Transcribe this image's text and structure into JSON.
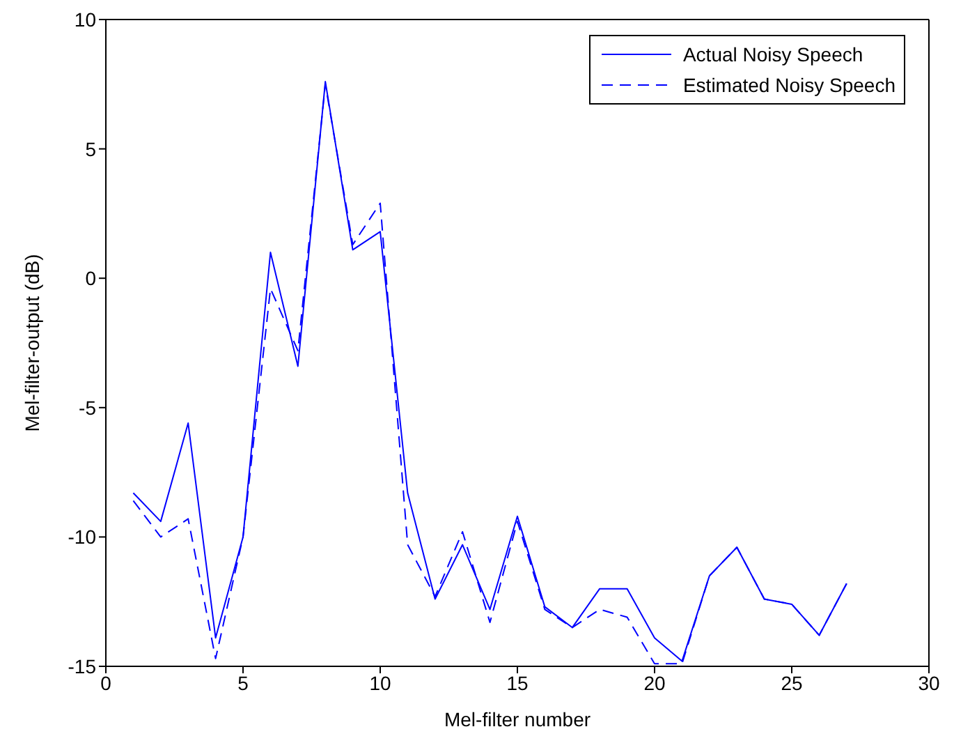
{
  "chart_data": {
    "type": "line",
    "xlabel": "Mel-filter number",
    "ylabel": "Mel-filter-output (dB)",
    "x": [
      1,
      2,
      3,
      4,
      5,
      6,
      7,
      8,
      9,
      10,
      11,
      12,
      13,
      14,
      15,
      16,
      17,
      18,
      19,
      20,
      21,
      22,
      23,
      24,
      25,
      26,
      27
    ],
    "xlim": [
      0,
      30
    ],
    "xticks": [
      0,
      5,
      10,
      15,
      20,
      25,
      30
    ],
    "ylim": [
      -15,
      10
    ],
    "yticks": [
      -15,
      -10,
      -5,
      0,
      5,
      10
    ],
    "grid": false,
    "legend": "top right",
    "marker": "none",
    "series": [
      {
        "name": "Actual Noisy Speech",
        "color": "#0000ff",
        "line_style": "solid",
        "values": [
          -8.3,
          -9.4,
          -5.6,
          -13.9,
          -10,
          1,
          -3.4,
          7.6,
          1.1,
          1.8,
          -8.3,
          -12.4,
          -10.3,
          -12.8,
          -9.2,
          -12.7,
          -13.5,
          -12,
          -12,
          -13.9,
          -14.8,
          -11.5,
          -10.4,
          -12.4,
          -12.6,
          -13.8,
          -11.8
        ]
      },
      {
        "name": "Estimated Noisy Speech",
        "color": "#0000ff",
        "line_style": "dashed",
        "values": [
          -8.6,
          -10,
          -9.3,
          -14.7,
          -10,
          -0.4,
          -2.8,
          7.5,
          1.3,
          2.9,
          -10.3,
          -12.3,
          -9.8,
          -13.3,
          -9.4,
          -12.8,
          -13.5,
          -12.8,
          -13.1,
          -14.9,
          -14.9,
          -11.5,
          -10.4,
          -12.4,
          -12.6,
          -13.8,
          -11.8
        ]
      }
    ]
  }
}
